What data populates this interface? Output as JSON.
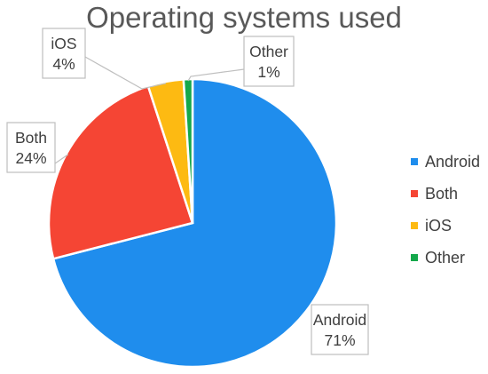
{
  "chart_data": {
    "type": "pie",
    "title": "Operating systems used",
    "categories": [
      "Android",
      "Both",
      "iOS",
      "Other"
    ],
    "values": [
      71,
      24,
      4,
      1
    ],
    "data_labels": [
      "71%",
      "24%",
      "4%",
      "1%"
    ],
    "colors": [
      "#1f8ded",
      "#f54534",
      "#fdba12",
      "#14a84b"
    ],
    "legend_position": "right",
    "start_angle_deg": 0,
    "direction": "clockwise"
  }
}
